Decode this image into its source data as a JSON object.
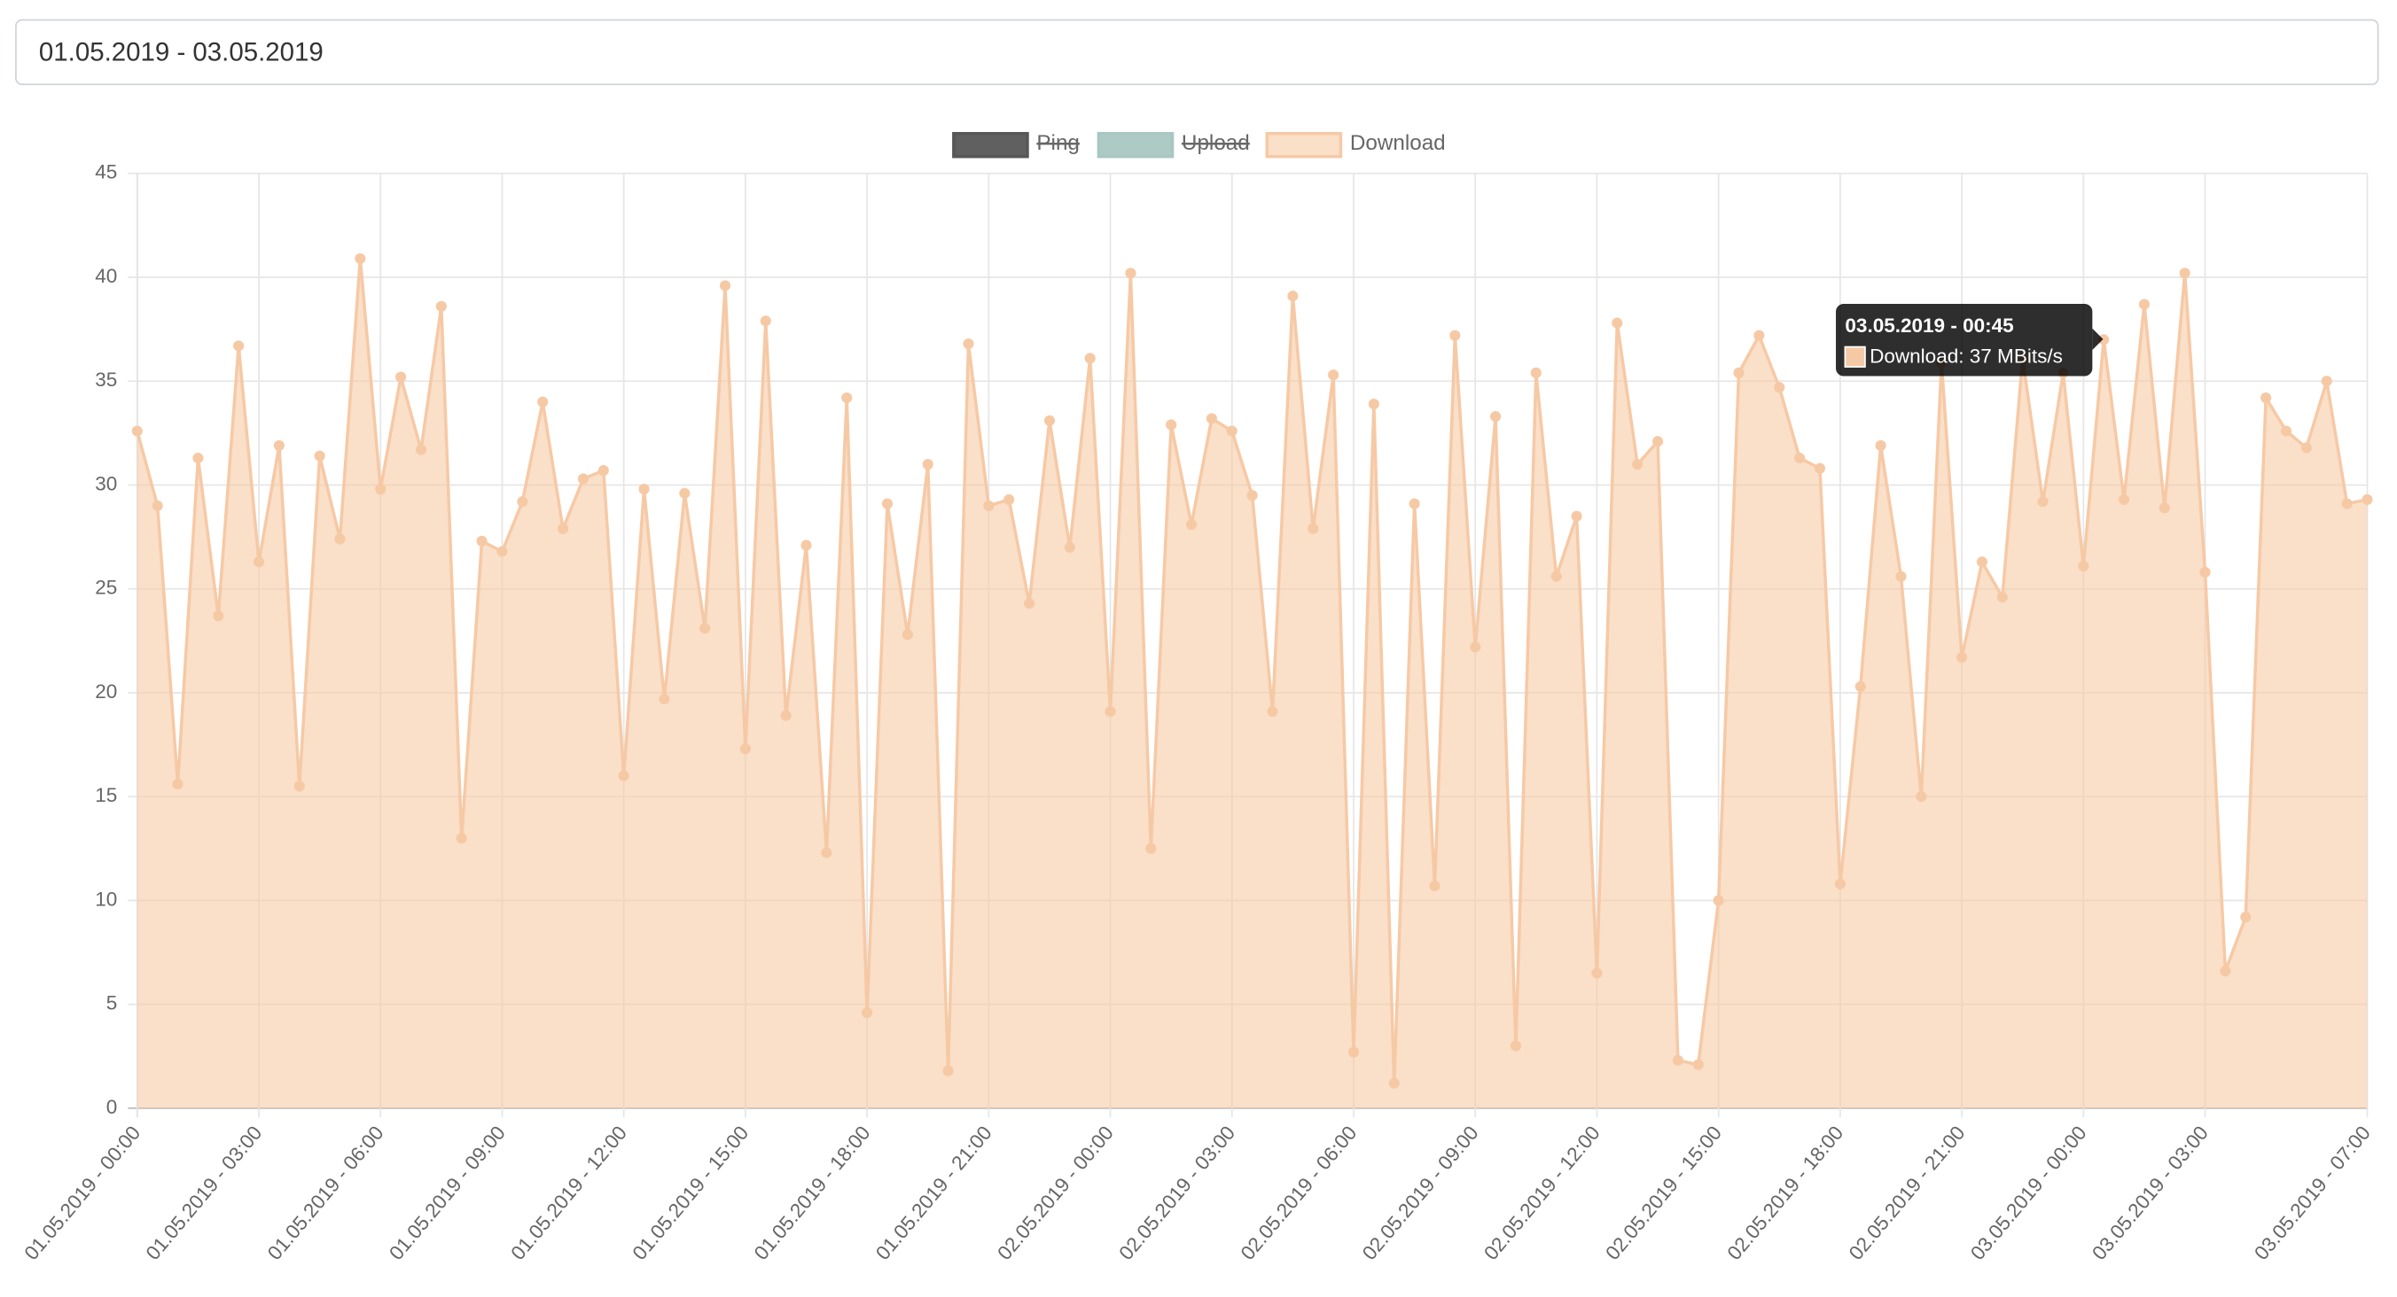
{
  "date_range_input": {
    "value": "01.05.2019 - 03.05.2019"
  },
  "chart_data": {
    "type": "line",
    "legend_position": "top",
    "legend": [
      {
        "name": "Ping",
        "color": "#575757",
        "hidden": true
      },
      {
        "name": "Upload",
        "color": "#a9c7c2",
        "hidden": true
      }
    ],
    "categories": [
      "01.05.2019 - 00:00",
      null,
      null,
      null,
      null,
      null,
      "01.05.2019 - 03:00",
      null,
      null,
      null,
      null,
      null,
      "01.05.2019 - 06:00",
      null,
      null,
      null,
      null,
      null,
      "01.05.2019 - 09:00",
      null,
      null,
      null,
      null,
      null,
      "01.05.2019 - 12:00",
      null,
      null,
      null,
      null,
      null,
      "01.05.2019 - 15:00",
      null,
      null,
      null,
      null,
      null,
      "01.05.2019 - 18:00",
      null,
      null,
      null,
      null,
      null,
      "01.05.2019 - 21:00",
      null,
      null,
      null,
      null,
      null,
      "02.05.2019 - 00:00",
      null,
      null,
      null,
      null,
      null,
      "02.05.2019 - 03:00",
      null,
      null,
      null,
      null,
      null,
      "02.05.2019 - 06:00",
      null,
      null,
      null,
      null,
      null,
      "02.05.2019 - 09:00",
      null,
      null,
      null,
      null,
      null,
      "02.05.2019 - 12:00",
      null,
      null,
      null,
      null,
      null,
      "02.05.2019 - 15:00",
      null,
      null,
      null,
      null,
      null,
      "02.05.2019 - 18:00",
      null,
      null,
      null,
      null,
      null,
      "02.05.2019 - 21:00",
      null,
      null,
      null,
      null,
      null,
      "03.05.2019 - 00:00",
      null,
      null,
      null,
      null,
      null,
      "03.05.2019 - 03:00",
      null,
      null,
      null,
      null,
      null,
      null,
      null,
      "03.05.2019 - 07:00"
    ],
    "series": [
      {
        "name": "Download",
        "color": "#f6c9a5",
        "values": [
          32.6,
          29.0,
          15.6,
          31.3,
          23.7,
          36.7,
          26.3,
          31.9,
          15.5,
          31.4,
          27.4,
          40.9,
          29.8,
          35.2,
          31.7,
          38.6,
          13.0,
          27.3,
          26.8,
          29.2,
          34.0,
          27.9,
          30.3,
          30.7,
          16.0,
          29.8,
          19.7,
          29.6,
          23.1,
          39.6,
          17.3,
          37.9,
          18.9,
          27.1,
          12.3,
          34.2,
          4.6,
          29.1,
          22.8,
          31.0,
          1.8,
          36.8,
          29.0,
          29.3,
          24.3,
          33.1,
          27.0,
          36.1,
          19.1,
          40.2,
          12.5,
          32.9,
          28.1,
          33.2,
          32.6,
          29.5,
          19.1,
          39.1,
          27.9,
          35.3,
          2.7,
          33.9,
          1.2,
          29.1,
          10.7,
          37.2,
          22.2,
          33.3,
          3.0,
          35.4,
          25.6,
          28.5,
          6.5,
          37.8,
          31.0,
          32.1,
          2.3,
          2.1,
          10.0,
          35.4,
          37.2,
          34.7,
          31.3,
          30.8,
          10.8,
          20.3,
          31.9,
          25.6,
          15.0,
          35.9,
          21.7,
          26.3,
          24.6,
          36.1,
          29.2,
          35.4,
          26.1,
          37.0,
          29.3,
          38.7,
          28.9,
          40.2,
          25.8,
          6.6,
          9.2,
          34.2,
          32.6,
          31.8,
          35.0,
          29.1,
          29.3
        ]
      }
    ],
    "fill": true,
    "ylim": [
      0,
      45
    ],
    "yticks": [
      0,
      5,
      10,
      15,
      20,
      25,
      30,
      35,
      40,
      45
    ],
    "grid": true,
    "tooltip": {
      "title": "03.05.2019 - 00:45",
      "text": "Download: 37 MBits/s"
    }
  }
}
